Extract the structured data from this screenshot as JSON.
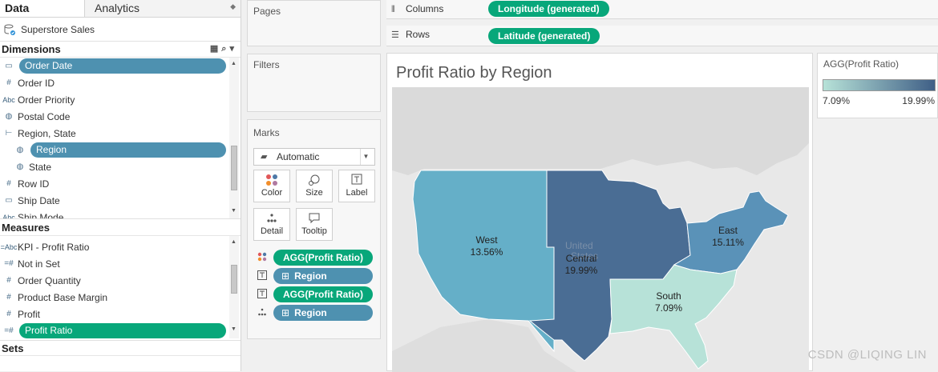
{
  "left": {
    "tabs": {
      "data": "Data",
      "analytics": "Analytics"
    },
    "datasource": "Superstore Sales",
    "dimensions_title": "Dimensions",
    "dimensions": [
      {
        "label": "Order Date",
        "icon": "calendar-icon",
        "highlight": true
      },
      {
        "label": "Order ID",
        "icon": "hash-icon"
      },
      {
        "label": "Order Priority",
        "icon": "abc-icon"
      },
      {
        "label": "Postal Code",
        "icon": "globe-icon"
      },
      {
        "label": "Region, State",
        "icon": "hierarchy-icon"
      },
      {
        "label": "Region",
        "icon": "globe-icon",
        "highlight": true
      },
      {
        "label": "State",
        "icon": "globe-icon"
      },
      {
        "label": "Row ID",
        "icon": "hash-icon"
      },
      {
        "label": "Ship Date",
        "icon": "calendar-icon"
      },
      {
        "label": "Ship Mode",
        "icon": "abc-icon"
      }
    ],
    "measures_title": "Measures",
    "measures": [
      {
        "label": "KPI - Profit Ratio",
        "icon": "abc-calc-icon"
      },
      {
        "label": "Not in Set",
        "icon": "calc-hash-icon"
      },
      {
        "label": "Order Quantity",
        "icon": "hash-icon"
      },
      {
        "label": "Product Base Margin",
        "icon": "hash-icon"
      },
      {
        "label": "Profit",
        "icon": "hash-icon"
      },
      {
        "label": "Profit Ratio",
        "icon": "calc-hash-icon",
        "highlight": true
      }
    ],
    "sets_title": "Sets"
  },
  "shelves": {
    "pages": "Pages",
    "filters": "Filters",
    "columns_label": "Columns",
    "columns_pill": "Longitude (generated)",
    "rows_label": "Rows",
    "rows_pill": "Latitude (generated)"
  },
  "marks": {
    "title": "Marks",
    "type": "Automatic",
    "buttons": {
      "color": "Color",
      "size": "Size",
      "label": "Label",
      "detail": "Detail",
      "tooltip": "Tooltip"
    },
    "fields": [
      {
        "icon": "color-dots-icon",
        "label": "AGG(Profit Ratio)",
        "kind": "green"
      },
      {
        "icon": "label-T-icon",
        "label": "Region",
        "kind": "blue"
      },
      {
        "icon": "label-T-icon",
        "label": "AGG(Profit Ratio)",
        "kind": "green"
      },
      {
        "icon": "detail-dots-icon",
        "label": "Region",
        "kind": "blue"
      }
    ],
    "plus_glyph": "⊞"
  },
  "viz": {
    "title": "Profit Ratio by Region",
    "regions": [
      {
        "name": "West",
        "value": "13.56%",
        "color": "#65afc8"
      },
      {
        "name": "Central",
        "value": "19.99%",
        "color": "#4a6d94"
      },
      {
        "name": "East",
        "value": "15.11%",
        "color": "#5a92b8"
      },
      {
        "name": "South",
        "value": "7.09%",
        "color": "#b7e2d8"
      }
    ],
    "basemap_label": "United States"
  },
  "legend": {
    "title": "AGG(Profit Ratio)",
    "min": "7.09%",
    "max": "19.99%",
    "color_low": "#b7e2d8",
    "color_high": "#3f5f86"
  },
  "watermark": "CSDN @LIQING LIN"
}
